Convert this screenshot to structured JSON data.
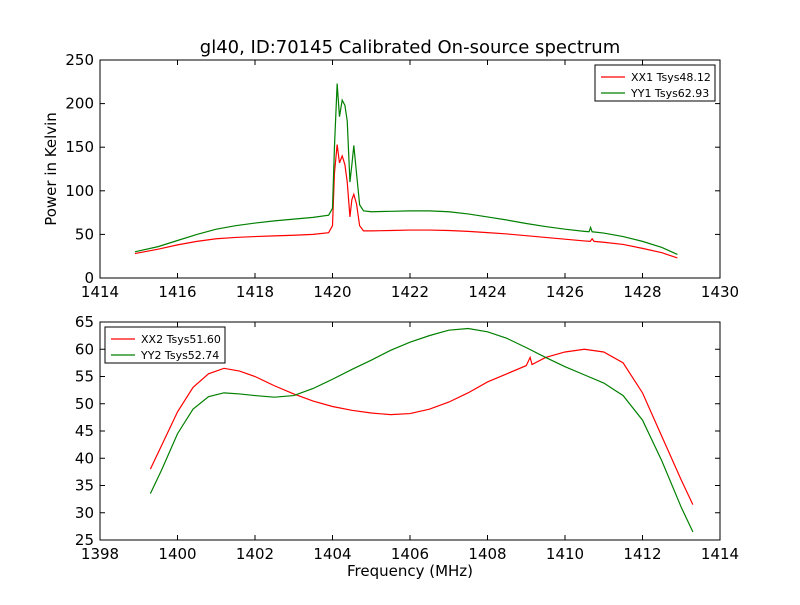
{
  "title": "gl40, ID:70145 Calibrated On-source spectrum",
  "colors": {
    "xx": "#ff0000",
    "yy": "#008000"
  },
  "chart_data": [
    {
      "type": "line",
      "ylabel": "Power in Kelvin",
      "xlabel": "",
      "xlim": [
        1414,
        1430
      ],
      "ylim": [
        0,
        250
      ],
      "xticks": [
        1414,
        1416,
        1418,
        1420,
        1422,
        1424,
        1426,
        1428,
        1430
      ],
      "yticks": [
        0,
        50,
        100,
        150,
        200,
        250
      ],
      "legend_position": "top-right",
      "series": [
        {
          "name": "XX1 Tsys48.12",
          "color": "#ff0000",
          "points": [
            [
              1414.9,
              28
            ],
            [
              1415.5,
              33
            ],
            [
              1416.0,
              38
            ],
            [
              1416.5,
              42
            ],
            [
              1417.0,
              45
            ],
            [
              1417.5,
              46.5
            ],
            [
              1418.0,
              47.5
            ],
            [
              1418.5,
              48.3
            ],
            [
              1419.0,
              49
            ],
            [
              1419.5,
              50
            ],
            [
              1419.9,
              52
            ],
            [
              1420.0,
              60
            ],
            [
              1420.05,
              120
            ],
            [
              1420.12,
              153
            ],
            [
              1420.18,
              132
            ],
            [
              1420.25,
              140
            ],
            [
              1420.32,
              130
            ],
            [
              1420.38,
              110
            ],
            [
              1420.45,
              70
            ],
            [
              1420.5,
              90
            ],
            [
              1420.55,
              96
            ],
            [
              1420.62,
              85
            ],
            [
              1420.7,
              60
            ],
            [
              1420.8,
              54
            ],
            [
              1421.0,
              54
            ],
            [
              1421.5,
              54.5
            ],
            [
              1422.0,
              55
            ],
            [
              1422.5,
              55
            ],
            [
              1423.0,
              54.5
            ],
            [
              1423.5,
              53.5
            ],
            [
              1424.0,
              52
            ],
            [
              1424.5,
              50.5
            ],
            [
              1425.0,
              48.5
            ],
            [
              1425.5,
              46.5
            ],
            [
              1426.0,
              44.5
            ],
            [
              1426.5,
              42.5
            ],
            [
              1426.65,
              42
            ],
            [
              1426.7,
              45
            ],
            [
              1426.75,
              42
            ],
            [
              1427.0,
              41
            ],
            [
              1427.5,
              38.5
            ],
            [
              1428.0,
              34
            ],
            [
              1428.5,
              29
            ],
            [
              1428.9,
              23
            ]
          ]
        },
        {
          "name": "YY1 Tsys62.93",
          "color": "#008000",
          "points": [
            [
              1414.9,
              30
            ],
            [
              1415.5,
              36
            ],
            [
              1416.0,
              43
            ],
            [
              1416.5,
              50
            ],
            [
              1417.0,
              56
            ],
            [
              1417.5,
              60
            ],
            [
              1418.0,
              63
            ],
            [
              1418.5,
              65.5
            ],
            [
              1419.0,
              67.5
            ],
            [
              1419.5,
              69.5
            ],
            [
              1419.9,
              72
            ],
            [
              1420.0,
              80
            ],
            [
              1420.05,
              150
            ],
            [
              1420.12,
              223
            ],
            [
              1420.18,
              185
            ],
            [
              1420.25,
              204
            ],
            [
              1420.32,
              198
            ],
            [
              1420.38,
              180
            ],
            [
              1420.45,
              110
            ],
            [
              1420.5,
              130
            ],
            [
              1420.55,
              152
            ],
            [
              1420.62,
              120
            ],
            [
              1420.7,
              84
            ],
            [
              1420.8,
              77
            ],
            [
              1421.0,
              76
            ],
            [
              1421.5,
              76.5
            ],
            [
              1422.0,
              77
            ],
            [
              1422.5,
              77
            ],
            [
              1423.0,
              76
            ],
            [
              1423.5,
              73.5
            ],
            [
              1424.0,
              70
            ],
            [
              1424.5,
              66.5
            ],
            [
              1425.0,
              62.5
            ],
            [
              1425.5,
              59
            ],
            [
              1426.0,
              56
            ],
            [
              1426.5,
              53.5
            ],
            [
              1426.62,
              53
            ],
            [
              1426.66,
              58
            ],
            [
              1426.7,
              53
            ],
            [
              1427.0,
              51.5
            ],
            [
              1427.5,
              47.5
            ],
            [
              1428.0,
              42
            ],
            [
              1428.5,
              35
            ],
            [
              1428.9,
              27
            ]
          ]
        }
      ]
    },
    {
      "type": "line",
      "ylabel": "",
      "xlabel": "Frequency (MHz)",
      "xlim": [
        1398,
        1414
      ],
      "ylim": [
        25,
        65
      ],
      "xticks": [
        1398,
        1400,
        1402,
        1404,
        1406,
        1408,
        1410,
        1412,
        1414
      ],
      "yticks": [
        25,
        30,
        35,
        40,
        45,
        50,
        55,
        60,
        65
      ],
      "legend_position": "top-left",
      "series": [
        {
          "name": "XX2 Tsys51.60",
          "color": "#ff0000",
          "points": [
            [
              1399.3,
              38
            ],
            [
              1399.6,
              42.5
            ],
            [
              1400.0,
              48.5
            ],
            [
              1400.4,
              53
            ],
            [
              1400.8,
              55.5
            ],
            [
              1401.2,
              56.5
            ],
            [
              1401.6,
              56
            ],
            [
              1402.0,
              55
            ],
            [
              1402.5,
              53.3
            ],
            [
              1403.0,
              51.8
            ],
            [
              1403.5,
              50.5
            ],
            [
              1404.0,
              49.5
            ],
            [
              1404.5,
              48.8
            ],
            [
              1405.0,
              48.3
            ],
            [
              1405.5,
              48
            ],
            [
              1406.0,
              48.2
            ],
            [
              1406.5,
              49
            ],
            [
              1407.0,
              50.3
            ],
            [
              1407.5,
              52
            ],
            [
              1408.0,
              54
            ],
            [
              1408.5,
              55.5
            ],
            [
              1409.0,
              57
            ],
            [
              1409.1,
              58.5
            ],
            [
              1409.15,
              57.2
            ],
            [
              1409.5,
              58.5
            ],
            [
              1410.0,
              59.5
            ],
            [
              1410.5,
              60
            ],
            [
              1411.0,
              59.5
            ],
            [
              1411.5,
              57.5
            ],
            [
              1412.0,
              52
            ],
            [
              1412.5,
              44
            ],
            [
              1413.0,
              36
            ],
            [
              1413.3,
              31.5
            ]
          ]
        },
        {
          "name": "YY2 Tsys52.74",
          "color": "#008000",
          "points": [
            [
              1399.3,
              33.5
            ],
            [
              1399.6,
              38
            ],
            [
              1400.0,
              44.5
            ],
            [
              1400.4,
              49
            ],
            [
              1400.8,
              51.3
            ],
            [
              1401.2,
              52
            ],
            [
              1401.6,
              51.8
            ],
            [
              1402.0,
              51.5
            ],
            [
              1402.5,
              51.2
            ],
            [
              1403.0,
              51.5
            ],
            [
              1403.5,
              52.8
            ],
            [
              1404.0,
              54.5
            ],
            [
              1404.5,
              56.3
            ],
            [
              1405.0,
              58
            ],
            [
              1405.5,
              59.8
            ],
            [
              1406.0,
              61.3
            ],
            [
              1406.5,
              62.5
            ],
            [
              1407.0,
              63.5
            ],
            [
              1407.5,
              63.8
            ],
            [
              1408.0,
              63.2
            ],
            [
              1408.5,
              62
            ],
            [
              1409.0,
              60.3
            ],
            [
              1409.5,
              58.5
            ],
            [
              1410.0,
              56.8
            ],
            [
              1410.5,
              55.3
            ],
            [
              1411.0,
              53.8
            ],
            [
              1411.5,
              51.5
            ],
            [
              1412.0,
              47
            ],
            [
              1412.5,
              39.5
            ],
            [
              1413.0,
              31
            ],
            [
              1413.3,
              26.5
            ]
          ]
        }
      ]
    }
  ]
}
